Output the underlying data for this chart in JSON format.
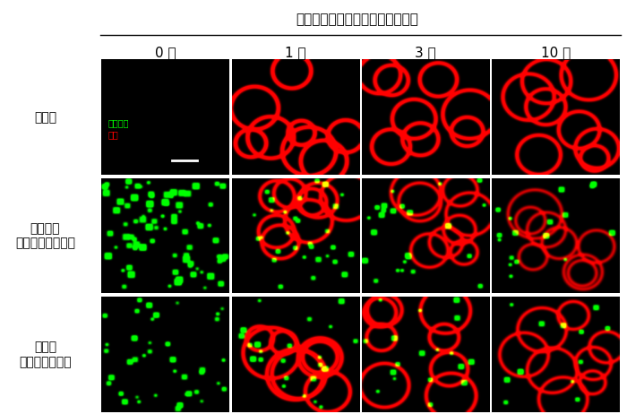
{
  "title": "蛍光デキストランの投与後の時間",
  "col_labels": [
    "0 分",
    "1 分",
    "3 分",
    "10 分"
  ],
  "row_labels": [
    "非感染",
    "高病原性\n鳥インフルエンザ",
    "季節性\nインフルエンザ"
  ],
  "legend_green": "感染細胞",
  "legend_red": "血流",
  "background": "#ffffff",
  "n_rows": 3,
  "n_cols": 4,
  "fig_width": 7.0,
  "fig_height": 4.62,
  "dpi": 100
}
